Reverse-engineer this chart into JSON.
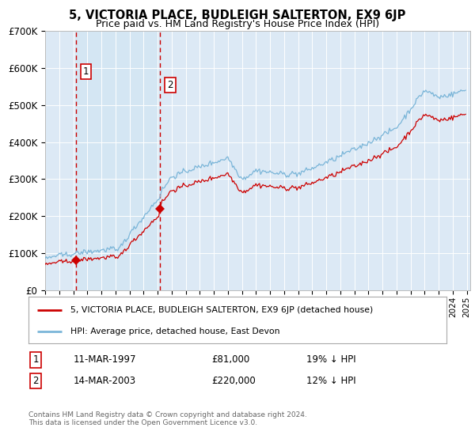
{
  "title": "5, VICTORIA PLACE, BUDLEIGH SALTERTON, EX9 6JP",
  "subtitle": "Price paid vs. HM Land Registry's House Price Index (HPI)",
  "legend_line1": "5, VICTORIA PLACE, BUDLEIGH SALTERTON, EX9 6JP (detached house)",
  "legend_line2": "HPI: Average price, detached house, East Devon",
  "transaction1_date": "11-MAR-1997",
  "transaction1_price": "£81,000",
  "transaction1_hpi": "19% ↓ HPI",
  "transaction1_year": 1997.19,
  "transaction1_value": 81000,
  "transaction2_date": "14-MAR-2003",
  "transaction2_price": "£220,000",
  "transaction2_hpi": "12% ↓ HPI",
  "transaction2_year": 2003.19,
  "transaction2_value": 220000,
  "footer": "Contains HM Land Registry data © Crown copyright and database right 2024.\nThis data is licensed under the Open Government Licence v3.0.",
  "hpi_color": "#7ab5d8",
  "price_color": "#cc0000",
  "background_color": "#dce9f5",
  "highlight_color": "#cde0f0",
  "ylim": [
    0,
    700000
  ],
  "yticks": [
    0,
    100000,
    200000,
    300000,
    400000,
    500000,
    600000,
    700000
  ],
  "ytick_labels": [
    "£0",
    "£100K",
    "£200K",
    "£300K",
    "£400K",
    "£500K",
    "£600K",
    "£700K"
  ],
  "xlim_start": 1995.0,
  "xlim_end": 2025.25
}
